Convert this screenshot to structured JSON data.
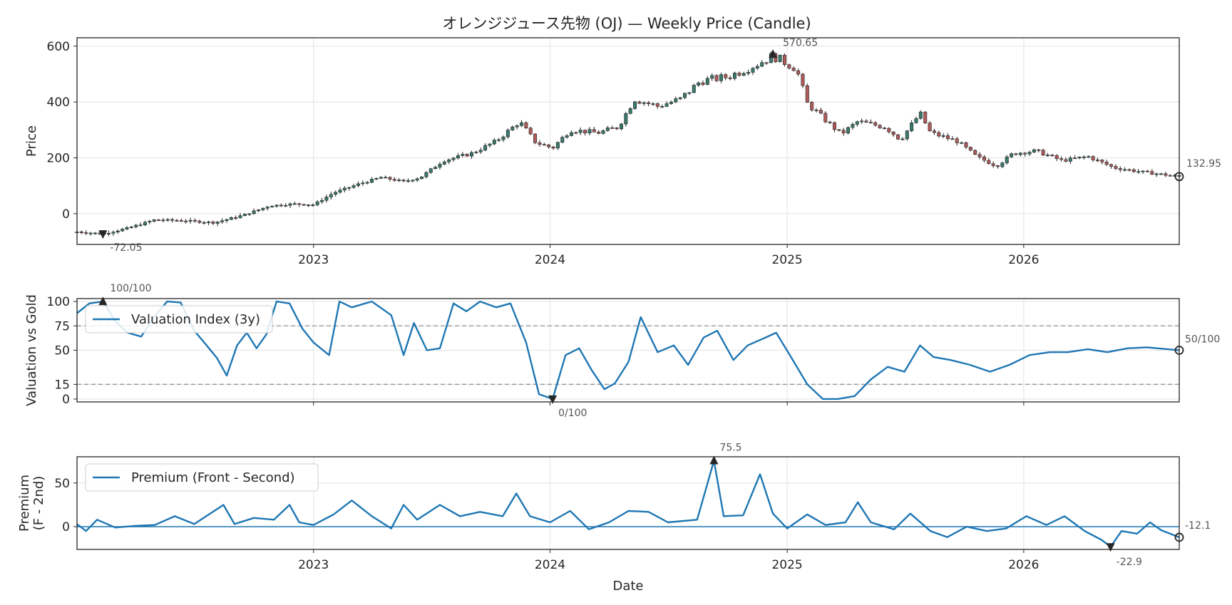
{
  "chart_data": [
    {
      "type": "candlestick",
      "title": "オレンジジュース先物 (OJ) — Weekly Price (Candle)",
      "xlabel": "",
      "ylabel": "Price",
      "ylim": [
        -110,
        630
      ],
      "xlim": [
        "2022-01-01",
        "2026-08-29"
      ],
      "x_ticks": [
        "2023",
        "2024",
        "2025",
        "2026"
      ],
      "y_ticks": [
        0,
        200,
        400,
        600
      ],
      "grid": true,
      "up_color": "#3a7a6e",
      "down_color": "#b05a5a",
      "annotations": [
        {
          "label": "570.65",
          "x": "2024-12-10",
          "y": 570.65,
          "marker": "max"
        },
        {
          "label": "-72.05",
          "x": "2022-02-10",
          "y": -72.05,
          "marker": "min"
        },
        {
          "label": "132.95",
          "x": "2026-08-29",
          "y": 132.95,
          "marker": "last"
        }
      ],
      "price_path": [
        [
          "2022-01-01",
          -65
        ],
        [
          "2022-02-10",
          -72
        ],
        [
          "2022-03-20",
          -52
        ],
        [
          "2022-05-01",
          -22
        ],
        [
          "2022-06-15",
          -25
        ],
        [
          "2022-08-01",
          -32
        ],
        [
          "2022-09-15",
          -5
        ],
        [
          "2022-10-25",
          28
        ],
        [
          "2022-12-01",
          35
        ],
        [
          "2023-01-01",
          32
        ],
        [
          "2023-02-01",
          75
        ],
        [
          "2023-03-10",
          105
        ],
        [
          "2023-04-15",
          130
        ],
        [
          "2023-05-20",
          115
        ],
        [
          "2023-06-15",
          130
        ],
        [
          "2023-07-20",
          190
        ],
        [
          "2023-09-01",
          215
        ],
        [
          "2023-10-10",
          260
        ],
        [
          "2023-11-15",
          330
        ],
        [
          "2023-12-10",
          255
        ],
        [
          "2024-01-05",
          235
        ],
        [
          "2024-02-01",
          300
        ],
        [
          "2024-03-15",
          290
        ],
        [
          "2024-04-15",
          310
        ],
        [
          "2024-05-10",
          410
        ],
        [
          "2024-06-15",
          385
        ],
        [
          "2024-07-20",
          410
        ],
        [
          "2024-08-20",
          475
        ],
        [
          "2024-10-01",
          490
        ],
        [
          "2024-11-15",
          535
        ],
        [
          "2024-12-10",
          565
        ],
        [
          "2025-01-15",
          520
        ],
        [
          "2025-02-01",
          395
        ],
        [
          "2025-03-01",
          335
        ],
        [
          "2025-03-25",
          285
        ],
        [
          "2025-04-20",
          330
        ],
        [
          "2025-06-01",
          310
        ],
        [
          "2025-06-25",
          265
        ],
        [
          "2025-07-25",
          360
        ],
        [
          "2025-08-10",
          290
        ],
        [
          "2025-09-20",
          260
        ],
        [
          "2025-10-20",
          205
        ],
        [
          "2025-11-20",
          170
        ],
        [
          "2025-12-15",
          215
        ],
        [
          "2026-01-20",
          225
        ],
        [
          "2026-03-01",
          190
        ],
        [
          "2026-04-10",
          205
        ],
        [
          "2026-05-20",
          165
        ],
        [
          "2026-07-01",
          150
        ],
        [
          "2026-08-29",
          133
        ]
      ]
    },
    {
      "type": "line",
      "title": "",
      "xlabel": "",
      "ylabel": "Valuation vs Gold",
      "ylim": [
        -3,
        103
      ],
      "y_ticks": [
        0,
        15,
        50,
        75,
        100
      ],
      "reference_lines": [
        75,
        15
      ],
      "series": [
        {
          "name": "Valuation Index (3y)",
          "color": "#1f77b4",
          "points": [
            [
              "2022-01-01",
              88
            ],
            [
              "2022-01-20",
              98
            ],
            [
              "2022-02-10",
              100
            ],
            [
              "2022-03-01",
              80
            ],
            [
              "2022-03-20",
              68
            ],
            [
              "2022-04-10",
              64
            ],
            [
              "2022-05-01",
              85
            ],
            [
              "2022-05-20",
              100
            ],
            [
              "2022-06-10",
              99
            ],
            [
              "2022-07-01",
              70
            ],
            [
              "2022-07-20",
              55
            ],
            [
              "2022-08-05",
              42
            ],
            [
              "2022-08-20",
              24
            ],
            [
              "2022-09-05",
              55
            ],
            [
              "2022-09-20",
              68
            ],
            [
              "2022-10-05",
              52
            ],
            [
              "2022-10-20",
              66
            ],
            [
              "2022-11-05",
              100
            ],
            [
              "2022-11-25",
              98
            ],
            [
              "2022-12-15",
              72
            ],
            [
              "2023-01-01",
              58
            ],
            [
              "2023-01-25",
              45
            ],
            [
              "2023-02-10",
              100
            ],
            [
              "2023-03-01",
              94
            ],
            [
              "2023-04-01",
              100
            ],
            [
              "2023-05-01",
              86
            ],
            [
              "2023-05-20",
              45
            ],
            [
              "2023-06-05",
              78
            ],
            [
              "2023-06-25",
              50
            ],
            [
              "2023-07-15",
              52
            ],
            [
              "2023-08-05",
              98
            ],
            [
              "2023-08-25",
              90
            ],
            [
              "2023-09-15",
              100
            ],
            [
              "2023-10-10",
              94
            ],
            [
              "2023-11-01",
              98
            ],
            [
              "2023-11-25",
              58
            ],
            [
              "2023-12-15",
              5
            ],
            [
              "2024-01-05",
              0
            ],
            [
              "2024-01-25",
              45
            ],
            [
              "2024-02-15",
              52
            ],
            [
              "2024-03-05",
              30
            ],
            [
              "2024-03-25",
              10
            ],
            [
              "2024-04-10",
              16
            ],
            [
              "2024-05-01",
              38
            ],
            [
              "2024-05-20",
              84
            ],
            [
              "2024-06-15",
              48
            ],
            [
              "2024-07-10",
              55
            ],
            [
              "2024-08-01",
              35
            ],
            [
              "2024-08-25",
              63
            ],
            [
              "2024-09-15",
              70
            ],
            [
              "2024-10-10",
              40
            ],
            [
              "2024-11-01",
              55
            ],
            [
              "2024-11-25",
              62
            ],
            [
              "2024-12-15",
              68
            ],
            [
              "2025-01-05",
              45
            ],
            [
              "2025-02-01",
              15
            ],
            [
              "2025-02-25",
              0
            ],
            [
              "2025-03-20",
              0
            ],
            [
              "2025-04-15",
              3
            ],
            [
              "2025-05-10",
              20
            ],
            [
              "2025-06-05",
              33
            ],
            [
              "2025-07-01",
              28
            ],
            [
              "2025-07-25",
              55
            ],
            [
              "2025-08-15",
              43
            ],
            [
              "2025-09-10",
              40
            ],
            [
              "2025-10-10",
              35
            ],
            [
              "2025-11-10",
              28
            ],
            [
              "2025-12-10",
              35
            ],
            [
              "2026-01-10",
              45
            ],
            [
              "2026-02-10",
              48
            ],
            [
              "2026-03-10",
              48
            ],
            [
              "2026-04-10",
              51
            ],
            [
              "2026-05-10",
              48
            ],
            [
              "2026-06-10",
              52
            ],
            [
              "2026-07-10",
              53
            ],
            [
              "2026-08-29",
              50
            ]
          ]
        }
      ],
      "annotations": [
        {
          "label": "100/100",
          "x": "2022-02-10",
          "y": 100,
          "marker": "max"
        },
        {
          "label": "0/100",
          "x": "2024-01-05",
          "y": 0,
          "marker": "min"
        },
        {
          "label": "50/100",
          "x": "2026-08-29",
          "y": 50,
          "marker": "last"
        }
      ],
      "legend_position": "upper-left"
    },
    {
      "type": "line",
      "title": "",
      "xlabel": "Date",
      "ylabel": "Premium\n(F - 2nd)",
      "ylim": [
        -26,
        80
      ],
      "y_ticks": [
        0,
        50
      ],
      "x_ticks": [
        "2023",
        "2024",
        "2025",
        "2026"
      ],
      "reference_lines": [
        0
      ],
      "series": [
        {
          "name": "Premium (Front - Second)",
          "color": "#1f77b4",
          "points": [
            [
              "2022-01-01",
              3
            ],
            [
              "2022-01-15",
              -5
            ],
            [
              "2022-02-01",
              8
            ],
            [
              "2022-03-01",
              -1
            ],
            [
              "2022-04-01",
              1
            ],
            [
              "2022-05-01",
              2
            ],
            [
              "2022-06-01",
              12
            ],
            [
              "2022-07-01",
              3
            ],
            [
              "2022-08-15",
              25
            ],
            [
              "2022-09-01",
              3
            ],
            [
              "2022-10-01",
              10
            ],
            [
              "2022-11-01",
              8
            ],
            [
              "2022-11-25",
              25
            ],
            [
              "2022-12-10",
              5
            ],
            [
              "2023-01-01",
              2
            ],
            [
              "2023-02-01",
              14
            ],
            [
              "2023-03-01",
              30
            ],
            [
              "2023-04-01",
              12
            ],
            [
              "2023-05-01",
              -2
            ],
            [
              "2023-05-20",
              25
            ],
            [
              "2023-06-10",
              8
            ],
            [
              "2023-07-15",
              25
            ],
            [
              "2023-08-15",
              12
            ],
            [
              "2023-09-15",
              17
            ],
            [
              "2023-10-20",
              12
            ],
            [
              "2023-11-10",
              38
            ],
            [
              "2023-12-01",
              12
            ],
            [
              "2024-01-01",
              5
            ],
            [
              "2024-02-01",
              18
            ],
            [
              "2024-03-01",
              -3
            ],
            [
              "2024-04-01",
              5
            ],
            [
              "2024-05-01",
              18
            ],
            [
              "2024-06-01",
              17
            ],
            [
              "2024-07-01",
              5
            ],
            [
              "2024-08-15",
              8
            ],
            [
              "2024-09-10",
              75.5
            ],
            [
              "2024-09-25",
              12
            ],
            [
              "2024-10-25",
              13
            ],
            [
              "2024-11-20",
              60
            ],
            [
              "2024-12-10",
              15
            ],
            [
              "2025-01-01",
              -2
            ],
            [
              "2025-02-01",
              14
            ],
            [
              "2025-03-01",
              2
            ],
            [
              "2025-04-01",
              5
            ],
            [
              "2025-04-20",
              28
            ],
            [
              "2025-05-10",
              5
            ],
            [
              "2025-06-15",
              -3
            ],
            [
              "2025-07-10",
              15
            ],
            [
              "2025-08-10",
              -5
            ],
            [
              "2025-09-05",
              -12
            ],
            [
              "2025-10-05",
              0
            ],
            [
              "2025-11-05",
              -5
            ],
            [
              "2025-12-05",
              -2
            ],
            [
              "2026-01-05",
              12
            ],
            [
              "2026-02-05",
              2
            ],
            [
              "2026-03-05",
              12
            ],
            [
              "2026-04-05",
              -5
            ],
            [
              "2026-05-01",
              -15
            ],
            [
              "2026-05-15",
              -22.9
            ],
            [
              "2026-06-01",
              -5
            ],
            [
              "2026-06-25",
              -8
            ],
            [
              "2026-07-15",
              5
            ],
            [
              "2026-08-01",
              -4
            ],
            [
              "2026-08-29",
              -12.1
            ]
          ]
        }
      ],
      "annotations": [
        {
          "label": "75.5",
          "x": "2024-09-10",
          "y": 75.5,
          "marker": "max"
        },
        {
          "label": "-22.9",
          "x": "2026-05-15",
          "y": -22.9,
          "marker": "min"
        },
        {
          "label": "-12.1",
          "x": "2026-08-29",
          "y": -12.1,
          "marker": "last"
        }
      ],
      "legend_position": "upper-left"
    }
  ]
}
